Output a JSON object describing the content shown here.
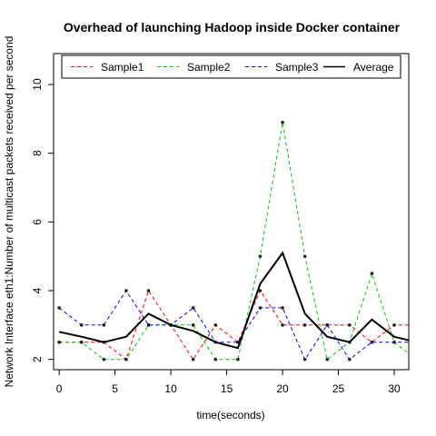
{
  "chart_data": {
    "type": "line",
    "title": "Overhead of launching Hadoop inside Docker container",
    "xlabel": "time(seconds)",
    "ylabel": "Network Interface eth1:Number of multicast packets received per second",
    "xlim": [
      -0.5,
      31.3
    ],
    "ylim": [
      1.7,
      10.9
    ],
    "x_ticks": [
      0,
      5,
      10,
      15,
      20,
      25,
      30
    ],
    "y_ticks": [
      2,
      4,
      6,
      8,
      10
    ],
    "x": [
      0,
      2,
      4,
      6,
      8,
      10,
      12,
      14,
      16,
      18,
      20,
      22,
      24,
      26,
      28,
      30,
      32
    ],
    "series": [
      {
        "name": "Sample1",
        "color": "#ff0000",
        "dash": "dashed",
        "values": [
          2.5,
          2.5,
          2.5,
          2.0,
          4.0,
          3.0,
          2.0,
          3.0,
          2.5,
          4.0,
          3.0,
          3.0,
          3.0,
          3.0,
          2.5,
          3.0,
          3.0
        ]
      },
      {
        "name": "Sample2",
        "color": "#00cc00",
        "dash": "dashed",
        "values": [
          2.5,
          2.5,
          2.0,
          2.0,
          3.0,
          3.0,
          3.0,
          2.0,
          2.0,
          5.0,
          8.9,
          5.0,
          2.0,
          2.5,
          4.5,
          2.5,
          2.0
        ]
      },
      {
        "name": "Sample3",
        "color": "#0000ff",
        "dash": "dashed",
        "values": [
          3.5,
          3.0,
          3.0,
          4.0,
          3.0,
          3.0,
          3.5,
          2.5,
          2.5,
          3.5,
          3.5,
          2.0,
          3.0,
          2.0,
          2.5,
          2.5,
          2.5
        ]
      },
      {
        "name": "Average",
        "color": "#000000",
        "dash": "solid",
        "values": [
          2.8,
          2.66,
          2.5,
          2.66,
          3.33,
          3.0,
          2.83,
          2.5,
          2.33,
          4.2,
          5.1,
          3.33,
          2.66,
          2.5,
          3.16,
          2.66,
          2.5
        ]
      }
    ],
    "legend_position": "top",
    "grid": false
  }
}
